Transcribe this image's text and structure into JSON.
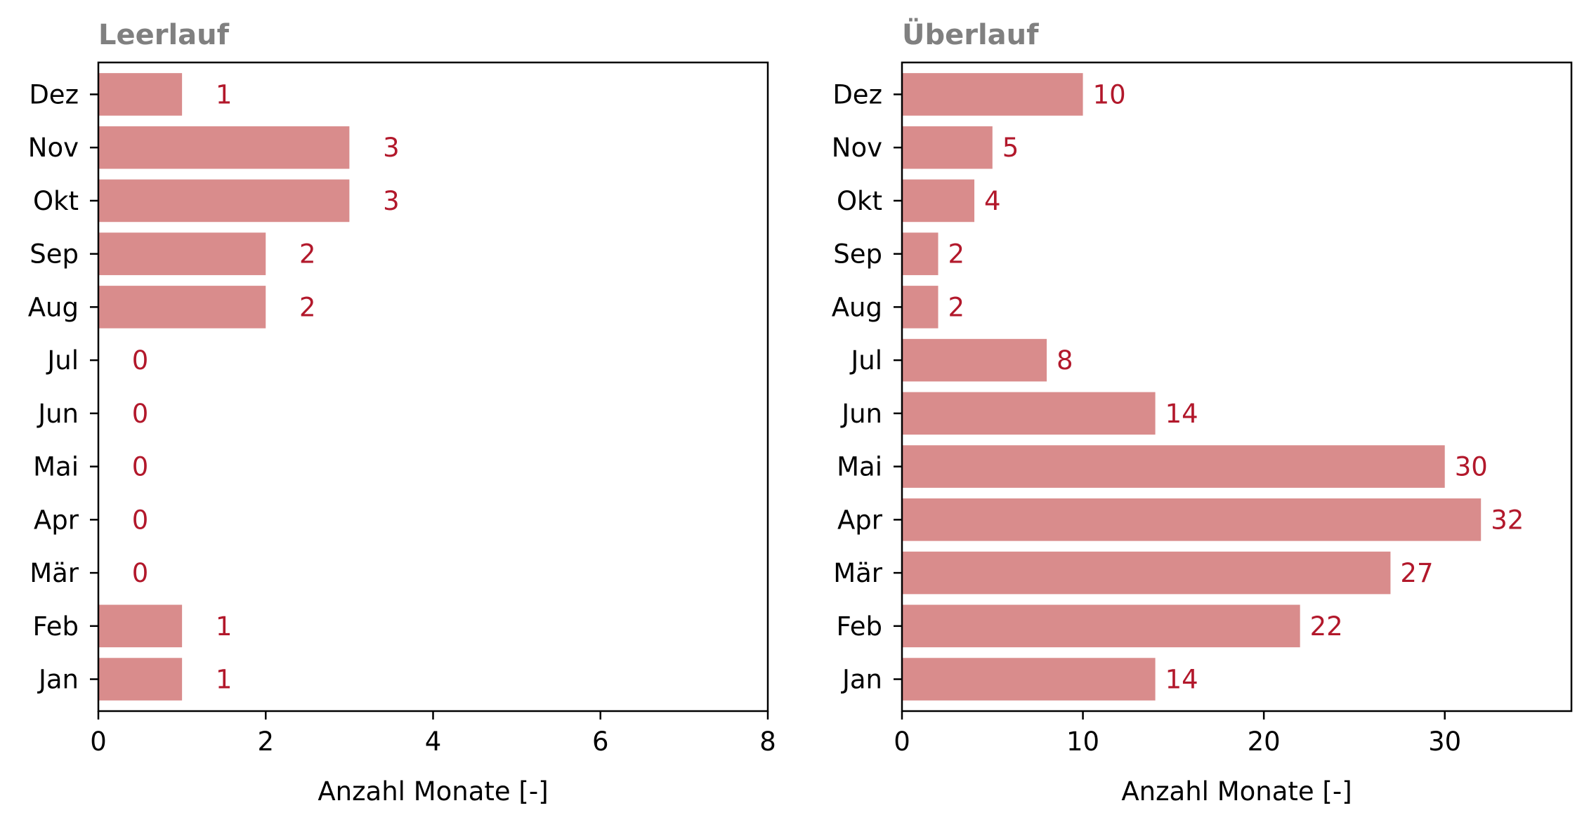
{
  "chart_data": [
    {
      "type": "bar",
      "orientation": "horizontal",
      "title": "Leerlauf",
      "categories": [
        "Jan",
        "Feb",
        "Mär",
        "Apr",
        "Mai",
        "Jun",
        "Jul",
        "Aug",
        "Sep",
        "Okt",
        "Nov",
        "Dez"
      ],
      "values": [
        1,
        1,
        0,
        0,
        0,
        0,
        0,
        2,
        2,
        3,
        3,
        1
      ],
      "xlabel": "Anzahl Monate [-]",
      "ylabel": "",
      "xlim": [
        0,
        8
      ],
      "xticks": [
        0,
        2,
        4,
        6,
        8
      ],
      "grid": false,
      "bar_color": "#d98c8c",
      "label_color": "#b2182b",
      "title_color": "#808080"
    },
    {
      "type": "bar",
      "orientation": "horizontal",
      "title": "Überlauf",
      "categories": [
        "Jan",
        "Feb",
        "Mär",
        "Apr",
        "Mai",
        "Jun",
        "Jul",
        "Aug",
        "Sep",
        "Okt",
        "Nov",
        "Dez"
      ],
      "values": [
        14,
        22,
        27,
        32,
        30,
        14,
        8,
        2,
        2,
        4,
        5,
        10
      ],
      "xlabel": "Anzahl Monate [-]",
      "ylabel": "",
      "xlim": [
        0,
        37
      ],
      "xticks": [
        0,
        10,
        20,
        30
      ],
      "grid": false,
      "bar_color": "#d98c8c",
      "label_color": "#b2182b",
      "title_color": "#808080"
    }
  ]
}
